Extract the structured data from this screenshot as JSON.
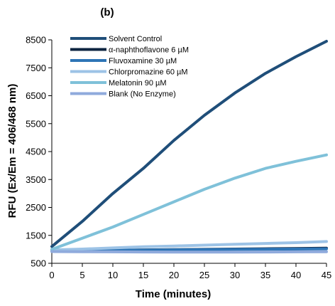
{
  "chart_data": {
    "type": "line",
    "panel_label": "(b)",
    "xlabel": "Time (minutes)",
    "ylabel": "RFU (Ex/Em = 406/468 nm)",
    "xlim": [
      0,
      45
    ],
    "ylim": [
      500,
      8500
    ],
    "x_ticks": [
      0,
      5,
      10,
      15,
      20,
      25,
      30,
      35,
      40,
      45
    ],
    "y_ticks": [
      500,
      1500,
      2500,
      3500,
      4500,
      5500,
      6500,
      7500,
      8500
    ],
    "grid": false,
    "legend_position": "top-left",
    "x": [
      0,
      5,
      10,
      15,
      20,
      25,
      30,
      35,
      40,
      45
    ],
    "series": [
      {
        "name": "Solvent Control",
        "color": "#1f4e79",
        "values": [
          1100,
          2000,
          3000,
          3900,
          4900,
          5800,
          6600,
          7300,
          7900,
          8450
        ]
      },
      {
        "name": "α-naphthoflavone 6 µM",
        "color": "#0d2440",
        "values": [
          950,
          960,
          970,
          980,
          990,
          1000,
          1010,
          1020,
          1030,
          1040
        ]
      },
      {
        "name": "Fluvoxamine 30 µM",
        "color": "#2e75b6",
        "values": [
          950,
          960,
          970,
          975,
          985,
          995,
          1000,
          1005,
          1010,
          1020
        ]
      },
      {
        "name": "Chlorpromazine 60 µM",
        "color": "#9dc3e6",
        "values": [
          980,
          1010,
          1050,
          1090,
          1120,
          1150,
          1180,
          1210,
          1240,
          1280
        ]
      },
      {
        "name": "Melatonin 90 µM",
        "color": "#7fc1d9",
        "values": [
          1000,
          1400,
          1800,
          2250,
          2700,
          3150,
          3550,
          3900,
          4150,
          4380
        ]
      },
      {
        "name": "Blank (No Enzyme)",
        "color": "#8faadc",
        "values": [
          920,
          915,
          910,
          905,
          900,
          900,
          900,
          905,
          910,
          915
        ]
      }
    ]
  }
}
